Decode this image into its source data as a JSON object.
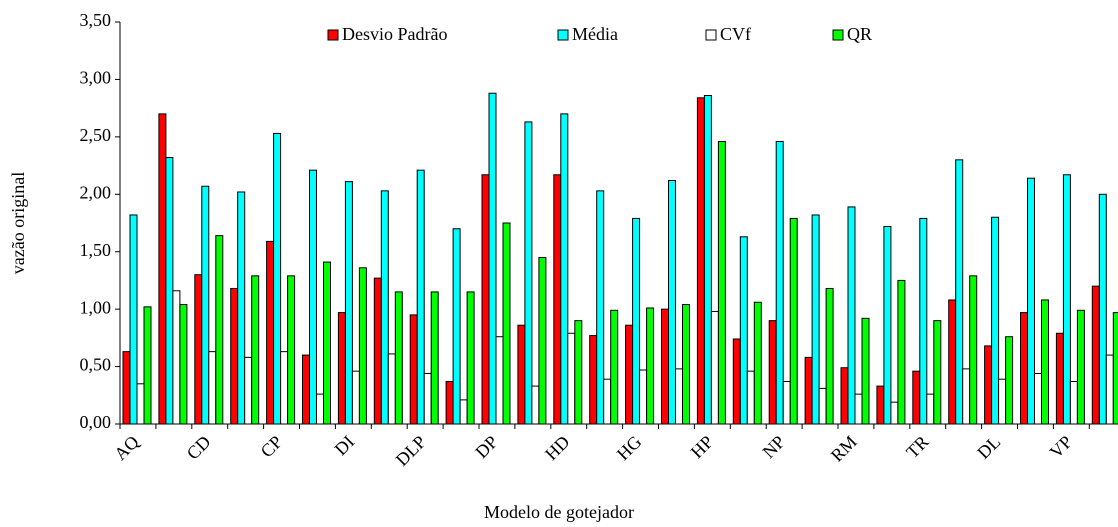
{
  "chart_data": {
    "type": "bar",
    "x_label": "Modelo de gotejador",
    "y_label": "vazão original",
    "categories": [
      "AQ",
      null,
      "CD",
      null,
      "CP",
      null,
      "DI",
      null,
      "DLP",
      null,
      "DP",
      null,
      "HD",
      null,
      "HG",
      null,
      "HP",
      null,
      "NP",
      null,
      "RM",
      null,
      "TR",
      null,
      "DL",
      null,
      "VP",
      null
    ],
    "series": [
      {
        "name": "Desvio Padrão",
        "color": "#ff0000",
        "values": [
          0.63,
          2.7,
          1.3,
          1.18,
          1.59,
          0.6,
          0.97,
          1.27,
          0.95,
          0.37,
          2.17,
          0.86,
          2.17,
          0.77,
          0.86,
          1.0,
          2.84,
          0.74,
          0.9,
          0.58,
          0.49,
          0.33,
          0.46,
          1.08,
          0.68,
          0.97,
          0.79,
          1.2
        ]
      },
      {
        "name": "Média",
        "color": "#00ffff",
        "values": [
          1.82,
          2.32,
          2.07,
          2.02,
          2.53,
          2.21,
          2.11,
          2.03,
          2.21,
          1.7,
          2.88,
          2.63,
          2.7,
          2.03,
          1.79,
          2.12,
          2.86,
          1.63,
          2.46,
          1.82,
          1.89,
          1.72,
          1.79,
          2.3,
          1.8,
          2.14,
          2.17,
          2.0
        ]
      },
      {
        "name": "CVf",
        "color": "#ffffff",
        "values": [
          0.35,
          1.16,
          0.63,
          0.58,
          0.63,
          0.26,
          0.46,
          0.61,
          0.44,
          0.21,
          0.76,
          0.33,
          0.79,
          0.39,
          0.47,
          0.48,
          0.98,
          0.46,
          0.37,
          0.31,
          0.26,
          0.19,
          0.26,
          0.48,
          0.39,
          0.44,
          0.37,
          0.6
        ]
      },
      {
        "name": "QR",
        "color": "#00ff00",
        "values": [
          1.02,
          1.04,
          1.64,
          1.29,
          1.29,
          1.41,
          1.36,
          1.15,
          1.15,
          1.15,
          1.75,
          1.45,
          0.9,
          0.99,
          1.01,
          1.04,
          2.46,
          1.06,
          1.79,
          1.18,
          0.92,
          1.25,
          0.9,
          1.29,
          0.76,
          1.08,
          0.99,
          0.97
        ]
      }
    ],
    "ylim": [
      0,
      3.5
    ],
    "yticks": [
      {
        "value": 0,
        "label": "0,00"
      },
      {
        "value": 0.5,
        "label": "0,50"
      },
      {
        "value": 1,
        "label": "1,00"
      },
      {
        "value": 1.5,
        "label": "1,50"
      },
      {
        "value": 2,
        "label": "2,00"
      },
      {
        "value": 2.5,
        "label": "2,50"
      },
      {
        "value": 3,
        "label": "3,00"
      },
      {
        "value": 3.5,
        "label": "3,50"
      }
    ],
    "legend": "top"
  }
}
